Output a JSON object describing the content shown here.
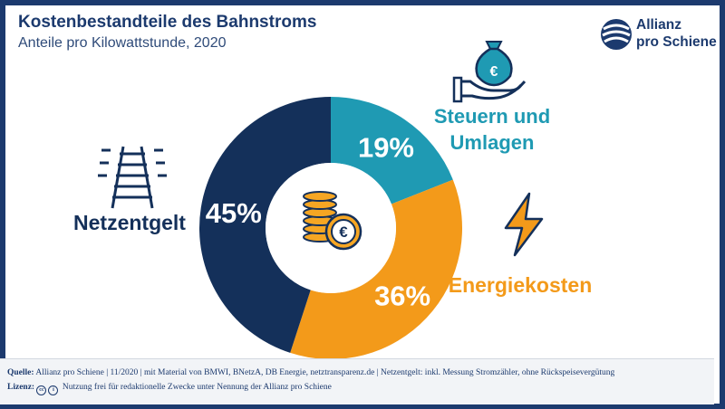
{
  "header": {
    "title": "Kostenbestandteile des Bahnstroms",
    "subtitle": "Anteile pro Kilowattstunde, 2020"
  },
  "logo": {
    "line1": "Allianz",
    "line2": "pro Schiene"
  },
  "chart_data": {
    "type": "pie",
    "variant": "donut",
    "start": "12 o'clock, clockwise",
    "categories": [
      "Steuern und Umlagen",
      "Energiekosten",
      "Netzentgelt"
    ],
    "values": [
      19,
      36,
      45
    ],
    "value_labels": [
      "19%",
      "36%",
      "45%"
    ],
    "category_labels": [
      [
        "Steuern und",
        "Umlagen"
      ],
      [
        "Energiekosten"
      ],
      [
        "Netzentgelt"
      ]
    ],
    "colors": [
      "#1f9ab3",
      "#f39a1a",
      "#14305a"
    ],
    "label_colors": [
      "#1f9ab3",
      "#f39a1a",
      "#14305a"
    ],
    "icons": [
      "money-bag-hand-icon",
      "lightning-bolt-icon",
      "railway-tracks-icon"
    ],
    "center_icon": "euro-coins-icon"
  },
  "footer": {
    "source_label": "Quelle:",
    "source_text": "Allianz pro Schiene | 11/2020 | mit Material von BMWI, BNetzA, DB Energie, netztransparenz.de | Netzentgelt: inkl. Messung Stromzähler, ohne Rückspeisevergütung",
    "license_label": "Lizenz:",
    "license_text": "Nutzung frei für redaktionelle Zwecke unter Nennung der Allianz pro Schiene"
  }
}
